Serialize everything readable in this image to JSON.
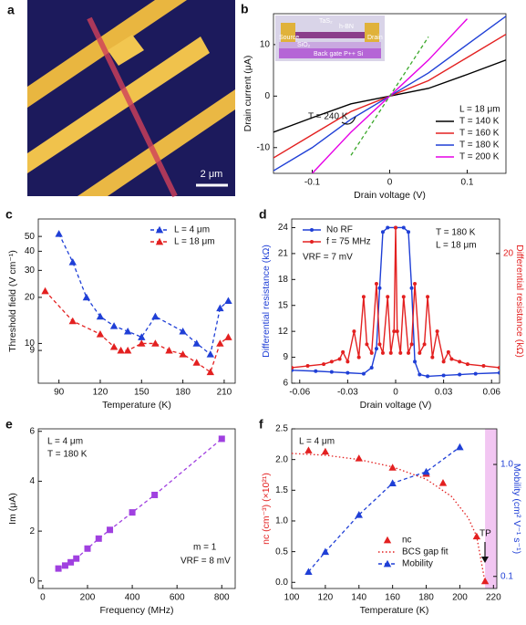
{
  "image_panel": {
    "panel": "a",
    "scale_bar": "2 μm"
  },
  "chart_data": [
    {
      "type": "line",
      "panel": "b",
      "xlabel": "Drain voltage (V)",
      "ylabel": "Drain current (μA)",
      "x": [
        -0.15,
        -0.1,
        -0.05,
        0,
        0.05,
        0.1,
        0.15
      ],
      "xlim": [
        -0.15,
        0.15
      ],
      "xticks": [
        -0.1,
        0,
        0.1
      ],
      "ylim": [
        -15,
        16
      ],
      "yticks": [
        -10,
        0,
        10
      ],
      "legend_title": "L = 18 μm",
      "inset_labels": [
        "TaS₂",
        "h-BN",
        "Source",
        "Drain",
        "SiO₂",
        "Back gate P++ Si"
      ],
      "annotations": [
        "T = 240 K"
      ],
      "series": [
        {
          "name": "T = 140 K",
          "color": "#000000",
          "line": "solid",
          "values": [
            -7,
            -4.2,
            -1.5,
            0,
            1.5,
            4.2,
            7
          ]
        },
        {
          "name": "T = 160 K",
          "color": "#e32020",
          "line": "solid",
          "values": [
            -12,
            -7.5,
            -3,
            0,
            3,
            7.5,
            12
          ]
        },
        {
          "name": "T = 180 K",
          "color": "#1f3fd6",
          "line": "solid",
          "values": [
            -14.5,
            -10,
            -4.5,
            0,
            4.5,
            10,
            15.5
          ]
        },
        {
          "name": "T = 200 K",
          "color": "#e600e6",
          "line": "solid",
          "values": [
            null,
            -15,
            -7,
            0,
            7,
            15,
            null
          ]
        },
        {
          "color": "#3aa82a",
          "line": "dashed",
          "values": [
            null,
            null,
            -11.5,
            0,
            11.5,
            null,
            null
          ]
        }
      ]
    },
    {
      "type": "line",
      "panel": "c",
      "xlabel": "Temperature (K)",
      "ylabel": "Threshold field (V cm⁻¹)",
      "xlim": [
        75,
        218
      ],
      "xticks": [
        90,
        120,
        150,
        180,
        210
      ],
      "ylim": [
        5.5,
        65
      ],
      "ylog": true,
      "yticks": [
        9,
        10,
        20,
        30,
        40,
        50
      ],
      "series": [
        {
          "name": "L = 4 μm",
          "color": "#1f3fd6",
          "line": "dashed",
          "marker": "triangle",
          "x": [
            90,
            100,
            110,
            120,
            130,
            140,
            150,
            160,
            180,
            190,
            200,
            207,
            213
          ],
          "values": [
            52,
            34,
            20,
            15,
            13,
            12,
            11,
            15,
            12,
            10,
            8.5,
            17,
            19
          ]
        },
        {
          "name": "L = 18 μm",
          "color": "#e32020",
          "line": "dashed",
          "marker": "triangle",
          "x": [
            80,
            100,
            120,
            130,
            135,
            140,
            150,
            160,
            170,
            180,
            190,
            200,
            207,
            213
          ],
          "values": [
            22,
            14,
            11.5,
            9.5,
            9,
            9,
            10,
            10,
            9,
            8.5,
            7.5,
            6.5,
            10,
            11
          ]
        }
      ]
    },
    {
      "type": "line",
      "panel": "d",
      "xlabel": "Drain voltage (V)",
      "ylabel": "Differential resistance (kΩ)",
      "ylabel_color": "#1f3fd6",
      "y2label": "Differential resistance (kΩ)",
      "y2label_color": "#e32020",
      "xlim": [
        -0.065,
        0.065
      ],
      "xticks": [
        -0.06,
        -0.03,
        0,
        0.03,
        0.06
      ],
      "ylim": [
        6,
        25
      ],
      "yticks": [
        6,
        9,
        12,
        15,
        18,
        21,
        24
      ],
      "y2lim": [
        5,
        24
      ],
      "y2ticks": [
        20
      ],
      "annotations": [
        "VRF = 7 mV",
        "T = 180 K",
        "L = 18 μm"
      ],
      "series": [
        {
          "name": "No  RF",
          "color": "#1f3fd6",
          "line": "solid",
          "marker": "circle",
          "x": [
            -0.065,
            -0.05,
            -0.04,
            -0.03,
            -0.02,
            -0.015,
            -0.012,
            -0.01,
            -0.008,
            -0.005,
            0,
            0.005,
            0.008,
            0.01,
            0.012,
            0.015,
            0.02,
            0.03,
            0.04,
            0.05,
            0.065
          ],
          "values": [
            7.5,
            7.4,
            7.3,
            7.2,
            7.1,
            7.8,
            10,
            17,
            23.5,
            24,
            24,
            24,
            23.5,
            17,
            8.5,
            7,
            6.8,
            6.9,
            7,
            7.1,
            7.2
          ]
        },
        {
          "name": "f = 75 MHz",
          "color": "#e32020",
          "line": "solid",
          "marker": "circle",
          "axis": "y2",
          "x": [
            -0.065,
            -0.055,
            -0.045,
            -0.04,
            -0.035,
            -0.033,
            -0.03,
            -0.026,
            -0.023,
            -0.02,
            -0.018,
            -0.015,
            -0.012,
            -0.01,
            -0.008,
            -0.005,
            -0.003,
            -0.001,
            0,
            0.001,
            0.003,
            0.005,
            0.008,
            0.01,
            0.012,
            0.015,
            0.018,
            0.02,
            0.023,
            0.026,
            0.03,
            0.033,
            0.035,
            0.04,
            0.045,
            0.055,
            0.065
          ],
          "values": [
            6.8,
            7,
            7.2,
            7.5,
            7.8,
            8.6,
            7.5,
            11,
            8,
            15,
            9.5,
            8.5,
            16.5,
            9.5,
            8.5,
            15,
            8.5,
            11,
            23,
            11,
            8.5,
            15,
            8.5,
            9.5,
            16.5,
            8.5,
            9.5,
            15,
            8,
            11,
            7.5,
            8.6,
            7.8,
            7.5,
            7.2,
            7,
            6.8
          ]
        }
      ]
    },
    {
      "type": "line",
      "panel": "e",
      "xlabel": "Frequency (MHz)",
      "ylabel": "Im (μA)",
      "xlim": [
        -20,
        860
      ],
      "xticks": [
        0,
        200,
        400,
        600,
        800
      ],
      "ylim": [
        -0.3,
        6.1
      ],
      "yticks": [
        0,
        2,
        4,
        6
      ],
      "annotations": [
        "L = 4 μm",
        "T = 180 K",
        "m = 1",
        "VRF = 8 mV"
      ],
      "series": [
        {
          "color": "#a040e0",
          "line": "dashed",
          "marker": "square",
          "x": [
            70,
            100,
            125,
            150,
            200,
            250,
            300,
            400,
            500,
            800
          ],
          "values": [
            0.5,
            0.62,
            0.75,
            0.9,
            1.3,
            1.7,
            2.05,
            2.75,
            3.45,
            5.7
          ]
        }
      ]
    },
    {
      "type": "line",
      "panel": "f",
      "xlabel": "Temperature (K)",
      "ylabel": "nc (cm⁻³) (×10²¹)",
      "ylabel_color": "#e32020",
      "y2label": "Mobility (cm² V⁻¹ s⁻¹)",
      "y2label_color": "#1f3fd6",
      "xlim": [
        100,
        222
      ],
      "xticks": [
        100,
        120,
        140,
        160,
        180,
        200,
        220
      ],
      "ylim": [
        -0.1,
        2.5
      ],
      "yticks": [
        {
          "value": 0,
          "label": "0.0"
        },
        0.5,
        {
          "value": 1,
          "label": "1.0"
        },
        1.5,
        {
          "value": 2,
          "label": "2.0"
        },
        2.5
      ],
      "y2lim": [
        0.078,
        2.08
      ],
      "y2log": true,
      "y2ticks": [
        0.1,
        {
          "value": 1,
          "label": "1.0"
        }
      ],
      "shaded_x": [
        215,
        222
      ],
      "shade_color": "#f2c6f2",
      "annotations": [
        "L = 4 μm",
        "TP"
      ],
      "series": [
        {
          "name": "nc",
          "color": "#e32020",
          "line": "none",
          "marker": "triangle",
          "x": [
            110,
            120,
            140,
            160,
            180,
            190,
            210,
            215
          ],
          "values": [
            2.15,
            2.13,
            2.02,
            1.87,
            1.77,
            1.62,
            0.75,
            0.02
          ]
        },
        {
          "name": "BCS gap fit",
          "color": "#e32020",
          "line": "dotted",
          "x": [
            100,
            120,
            140,
            160,
            180,
            195,
            205,
            210,
            215
          ],
          "values": [
            2.1,
            2.07,
            2,
            1.88,
            1.68,
            1.4,
            1.05,
            0.75,
            0
          ]
        },
        {
          "name": "Mobility",
          "color": "#1f3fd6",
          "line": "dashed",
          "marker": "triangle",
          "axis": "y2",
          "x": [
            110,
            120,
            140,
            160,
            180,
            200
          ],
          "values": [
            0.11,
            0.166,
            0.355,
            0.68,
            0.86,
            1.43
          ]
        }
      ]
    }
  ]
}
